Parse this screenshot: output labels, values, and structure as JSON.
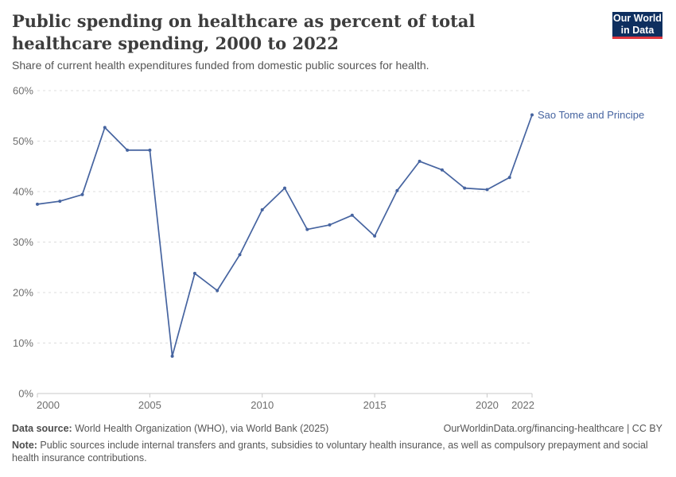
{
  "logo": {
    "line1": "Our World",
    "line2": "in Data",
    "bg_color": "#0e2f5f",
    "bar_color": "#e0373f"
  },
  "header": {
    "title": "Public spending on healthcare as percent of total healthcare spending, 2000 to 2022",
    "subtitle": "Share of current health expenditures funded from domestic public sources for health."
  },
  "chart_data": {
    "type": "line",
    "title": "Public spending on healthcare as percent of total healthcare spending, 2000 to 2022",
    "xlabel": "",
    "ylabel": "",
    "xlim": [
      2000,
      2022
    ],
    "ylim": [
      0,
      60
    ],
    "grid": "horizontal-dashed",
    "legend_position": "end-of-line-label",
    "xticks": [
      2000,
      2005,
      2010,
      2015,
      2020,
      2022
    ],
    "xtick_labels": [
      "2000",
      "2005",
      "2010",
      "2015",
      "2020",
      "2022"
    ],
    "yticks": [
      0,
      10,
      20,
      30,
      40,
      50,
      60
    ],
    "ytick_labels": [
      "0%",
      "10%",
      "20%",
      "30%",
      "40%",
      "50%",
      "60%"
    ],
    "x": [
      2000,
      2001,
      2002,
      2003,
      2004,
      2005,
      2006,
      2007,
      2008,
      2009,
      2010,
      2011,
      2012,
      2013,
      2014,
      2015,
      2016,
      2017,
      2018,
      2019,
      2020,
      2021,
      2022
    ],
    "series": [
      {
        "name": "Sao Tome and Principe",
        "color": "#4664a0",
        "values": [
          37.5,
          38.1,
          39.4,
          52.7,
          48.2,
          48.2,
          7.4,
          23.8,
          20.4,
          27.5,
          36.4,
          40.7,
          32.5,
          33.4,
          35.3,
          31.2,
          40.2,
          46.0,
          44.3,
          40.7,
          40.4,
          42.8,
          55.2
        ]
      }
    ]
  },
  "footer": {
    "datasource_label": "Data source:",
    "datasource_text": " World Health Organization (WHO), via World Bank (2025)",
    "link_text": "OurWorldinData.org/financing-healthcare | CC BY",
    "note_label": "Note:",
    "note_text": " Public sources include internal transfers and grants, subsidies to voluntary health insurance, as well as compulsory prepayment and social health insurance contributions."
  }
}
